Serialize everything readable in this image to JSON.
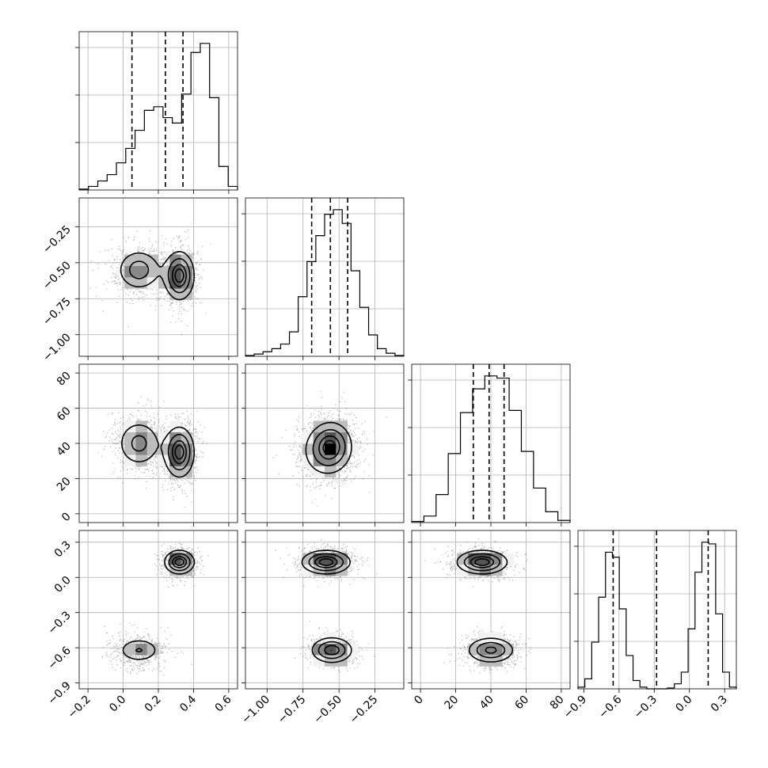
{
  "chart_data": {
    "type": "corner",
    "title": "",
    "grid": true,
    "parameters": [
      {
        "range": [
          -0.25,
          0.65
        ],
        "ticks": [
          -0.2,
          0.0,
          0.2,
          0.4,
          0.6
        ],
        "tick_labels": [
          "−0.2",
          "0.0",
          "0.2",
          "0.4",
          "0.6"
        ],
        "quantiles": [
          0.05,
          0.24,
          0.34
        ],
        "histogram": [
          0.005,
          0.02,
          0.05,
          0.085,
          0.15,
          0.23,
          0.33,
          0.44,
          0.46,
          0.4,
          0.37,
          0.53,
          0.76,
          0.81,
          0.51,
          0.13,
          0.02
        ]
      },
      {
        "range": [
          -1.15,
          -0.05
        ],
        "ticks": [
          -1.0,
          -0.75,
          -0.5,
          -0.25
        ],
        "tick_labels": [
          "−1.00",
          "−0.75",
          "−0.50",
          "−0.25"
        ],
        "quantiles": [
          -0.69,
          -0.56,
          -0.44
        ],
        "histogram": [
          0.005,
          0.015,
          0.03,
          0.05,
          0.08,
          0.16,
          0.39,
          0.62,
          0.79,
          0.93,
          0.96,
          0.87,
          0.56,
          0.32,
          0.14,
          0.05,
          0.02,
          0.005
        ]
      },
      {
        "range": [
          -5,
          85
        ],
        "ticks": [
          0,
          20,
          40,
          60,
          80
        ],
        "tick_labels": [
          "0",
          "20",
          "40",
          "60",
          "80"
        ],
        "quantiles": [
          30,
          39,
          47.5
        ],
        "histogram": [
          0.005,
          0.03,
          0.13,
          0.32,
          0.51,
          0.62,
          0.68,
          0.67,
          0.52,
          0.33,
          0.16,
          0.05,
          0.01
        ]
      },
      {
        "range": [
          -0.95,
          0.4
        ],
        "ticks": [
          -0.9,
          -0.6,
          -0.3,
          0.0,
          0.3
        ],
        "tick_labels": [
          "−0.9",
          "−0.6",
          "−0.3",
          "0.0",
          "0.3"
        ],
        "quantiles": [
          -0.65,
          -0.28,
          0.16
        ],
        "histogram": [
          0.01,
          0.06,
          0.28,
          0.55,
          0.82,
          0.79,
          0.48,
          0.2,
          0.05,
          0.01,
          0.0,
          0.0,
          0.0,
          0.005,
          0.03,
          0.1,
          0.36,
          0.7,
          0.88,
          0.87,
          0.45,
          0.1,
          0.01
        ]
      }
    ],
    "y_tick_labels": {
      "1": [
        "−0.25",
        "−0.50",
        "−0.75",
        "−1.00"
      ],
      "2": [
        "80",
        "60",
        "40",
        "20",
        "0"
      ],
      "3": [
        "0.3",
        "0.0",
        "−0.3",
        "−0.6",
        "−0.9"
      ]
    },
    "components": [
      {
        "mean": [
          0.09,
          -0.55,
          40,
          -0.62
        ],
        "sd": [
          0.075,
          0.085,
          8,
          0.065
        ],
        "weight": 0.45
      },
      {
        "mean": [
          0.32,
          -0.59,
          35,
          0.13
        ],
        "sd": [
          0.05,
          0.1,
          8.5,
          0.06
        ],
        "weight": 0.55
      }
    ],
    "contour_levels": [
      0.25,
      0.5,
      0.75,
      0.9
    ]
  }
}
